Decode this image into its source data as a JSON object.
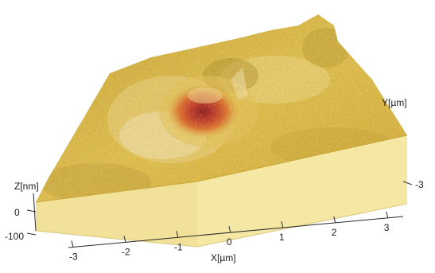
{
  "chart_data": {
    "type": "surface",
    "title": "",
    "xlabel": "X[µm]",
    "ylabel": "Y[µm]",
    "zlabel": "Z[nm]",
    "x_ticks": [
      "-3",
      "-2",
      "-1",
      "0",
      "1",
      "2",
      "3"
    ],
    "y_ticks": [
      "-3"
    ],
    "z_ticks": [
      "0",
      "-100"
    ],
    "xlim": [
      -3,
      3
    ],
    "ylim": [
      -3,
      3
    ],
    "zlim": [
      -130,
      20
    ],
    "feature": {
      "shape": "indentation pit",
      "center_xy_um": [
        0,
        0.3
      ],
      "depth_nm": -120
    },
    "colors": {
      "surface_high": "#f0d264",
      "surface_mid": "#d3a92a",
      "surface_low": "#a78416",
      "pit_mid": "#e06a20",
      "pit_deep": "#8c0f14",
      "base_side": "#f3e398"
    }
  }
}
